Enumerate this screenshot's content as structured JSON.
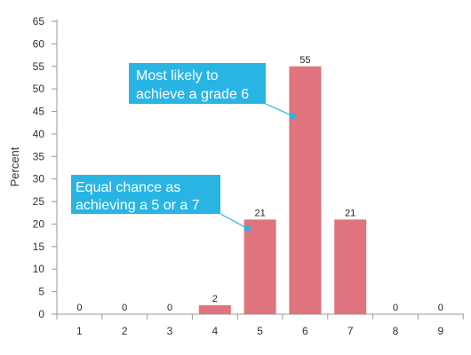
{
  "chart_data": {
    "type": "bar",
    "categories": [
      "1",
      "2",
      "3",
      "4",
      "5",
      "6",
      "7",
      "8",
      "9"
    ],
    "values": [
      0,
      0,
      0,
      2,
      21,
      55,
      21,
      0,
      0
    ],
    "data_labels": [
      "0",
      "0",
      "0",
      "2",
      "21",
      "55",
      "21",
      "0",
      "0"
    ],
    "ylabel": "Percent",
    "xlabel": "",
    "ylim": [
      0,
      65
    ],
    "yticks": [
      "0",
      "5",
      "10",
      "15",
      "20",
      "25",
      "30",
      "35",
      "40",
      "45",
      "50",
      "55",
      "60",
      "65"
    ],
    "grid": false,
    "legend": "none",
    "bar_color": "#df747e",
    "annotations": [
      {
        "lines": [
          "Most likely to",
          "achieve a grade 6"
        ],
        "target_category": "6",
        "target_value": 44
      },
      {
        "lines": [
          "Equal chance as",
          "achieving a 5 or a 7"
        ],
        "target_category": "5",
        "target_value": 19
      }
    ],
    "annotation_color": "#29b5e4"
  }
}
